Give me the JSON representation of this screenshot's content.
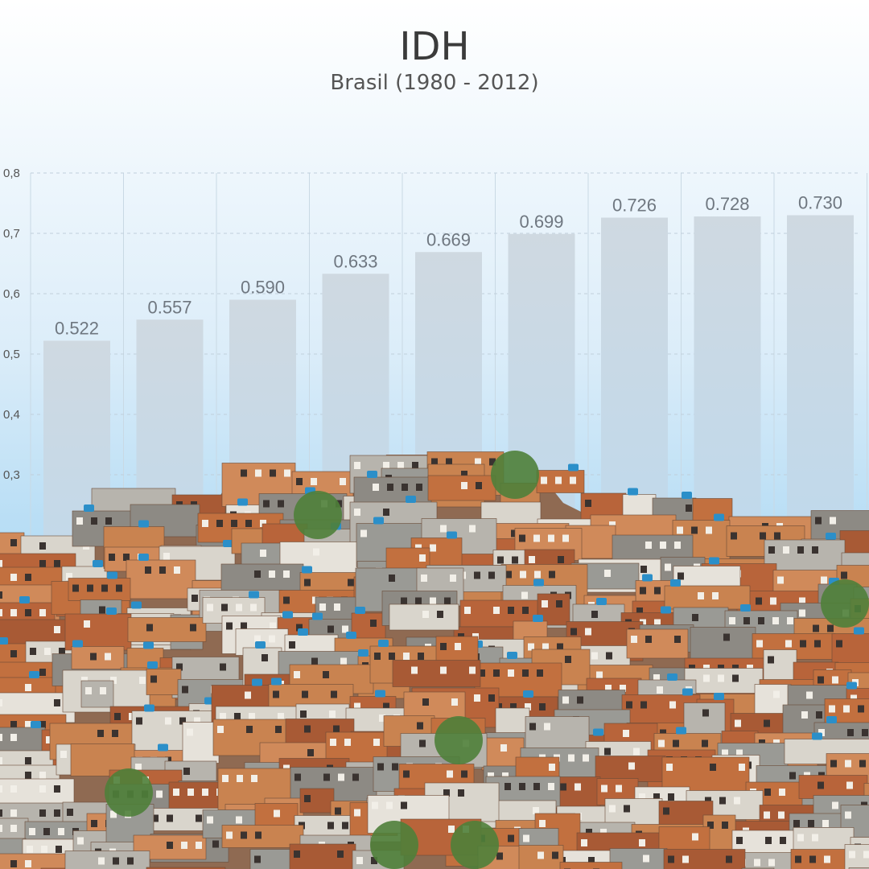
{
  "chart_data": {
    "type": "bar",
    "title": "IDH",
    "subtitle": "Brasil (1980 - 2012)",
    "xlabel": "",
    "ylabel": "",
    "ylim": [
      0,
      0.8
    ],
    "yticks": [
      "0,3",
      "0,4",
      "0,5",
      "0,6",
      "0,7",
      "0,8"
    ],
    "ytick_values": [
      0.3,
      0.4,
      0.5,
      0.6,
      0.7,
      0.8
    ],
    "values": [
      0.522,
      0.557,
      0.59,
      0.633,
      0.669,
      0.699,
      0.726,
      0.728,
      0.73
    ],
    "value_labels": [
      "0.522",
      "0.557",
      "0.590",
      "0.633",
      "0.669",
      "0.699",
      "0.726",
      "0.728",
      "0.730"
    ],
    "grid": true,
    "bar_color": "#cfdce6"
  }
}
